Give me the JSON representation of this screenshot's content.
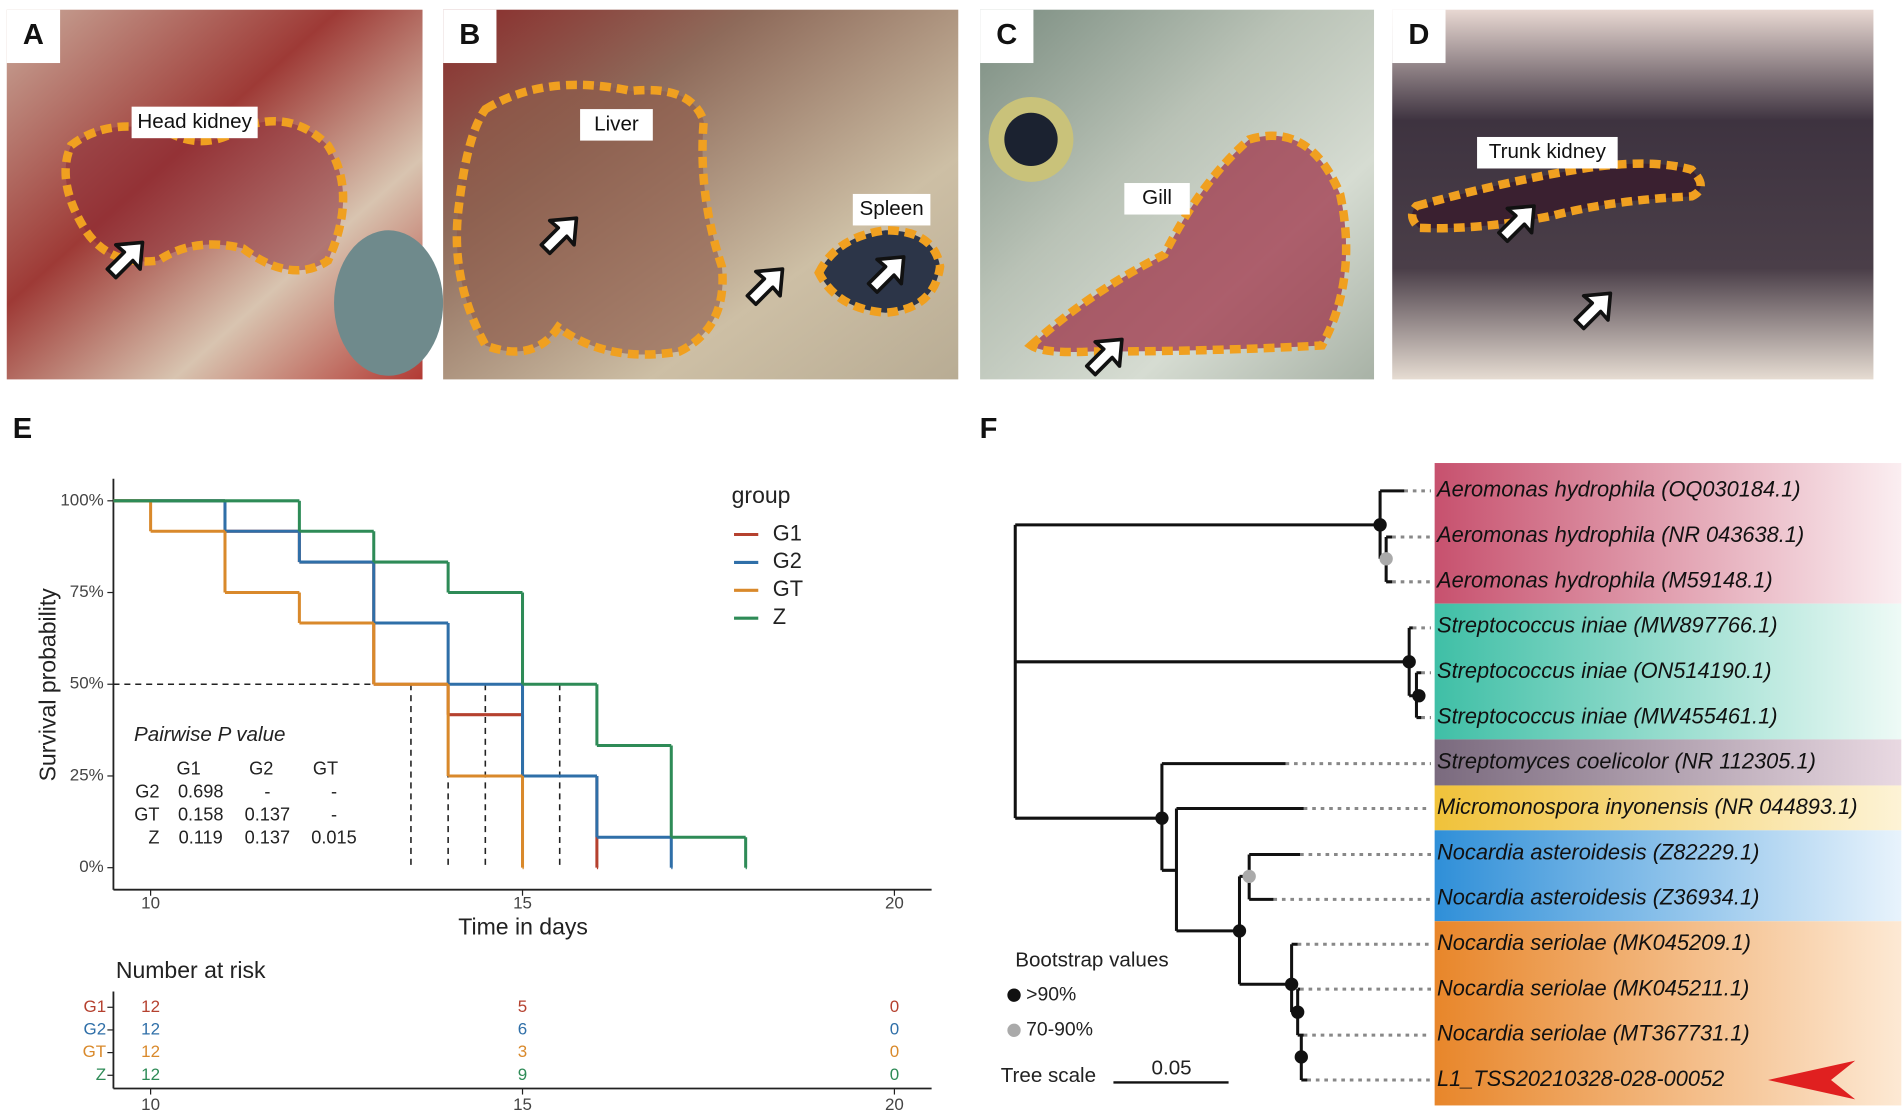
{
  "panel_labels": [
    "A",
    "B",
    "C",
    "D",
    "E",
    "F"
  ],
  "photo_labels": [
    "Head kidney",
    "Liver",
    "Spleen",
    "Gill",
    "Trunk kidney"
  ],
  "chart_data": {
    "type": "step",
    "xlabel": "Time in days",
    "ylabel": "Survival probability",
    "xlim": [
      9.5,
      20.5
    ],
    "xticks": [
      10,
      15,
      20
    ],
    "ylim": [
      -6,
      106
    ],
    "yticks": [
      {
        "value": 0,
        "label": "0%"
      },
      {
        "value": 25,
        "label": "25%"
      },
      {
        "value": 50,
        "label": "50%"
      },
      {
        "value": 75,
        "label": "75%"
      },
      {
        "value": 100,
        "label": "100%"
      }
    ],
    "legend_title": "group",
    "series": [
      {
        "name": "G1",
        "color": "#b5412f",
        "x": [
          9.5,
          11,
          12,
          13,
          14,
          15,
          16
        ],
        "values": [
          100,
          91.7,
          83.3,
          50,
          41.7,
          25,
          0
        ]
      },
      {
        "name": "G2",
        "color": "#2f6fa8",
        "x": [
          9.5,
          11,
          12,
          13,
          14,
          15,
          16,
          17
        ],
        "values": [
          100,
          91.7,
          83.3,
          66.7,
          50,
          25,
          8.3,
          0
        ]
      },
      {
        "name": "GT",
        "color": "#d9892b",
        "x": [
          9.5,
          10,
          11,
          12,
          13,
          14,
          15
        ],
        "values": [
          100,
          91.7,
          75,
          66.7,
          50,
          25,
          0
        ]
      },
      {
        "name": "Z",
        "color": "#2e8b57",
        "x": [
          9.5,
          12,
          13,
          14,
          15,
          16,
          17,
          18
        ],
        "values": [
          100,
          91.7,
          83.3,
          75,
          50,
          33.3,
          8.3,
          0
        ]
      }
    ],
    "median_level": 50,
    "median_times": [
      13.5,
      14,
      14.5,
      15.5
    ],
    "pairwise": {
      "title": "Pairwise P value",
      "columns": [
        "G1",
        "G2",
        "GT"
      ],
      "rows": [
        {
          "name": "G2",
          "cells": [
            "0.698",
            "-",
            "-"
          ]
        },
        {
          "name": "GT",
          "cells": [
            "0.158",
            "0.137",
            "-"
          ]
        },
        {
          "name": "Z",
          "cells": [
            "0.119",
            "0.137",
            "0.015"
          ]
        }
      ]
    },
    "risk_table": {
      "title": "Number at risk",
      "times": [
        10,
        15,
        20
      ],
      "rows": [
        {
          "name": "G1",
          "values": [
            12,
            5,
            0
          ]
        },
        {
          "name": "G2",
          "values": [
            12,
            6,
            0
          ]
        },
        {
          "name": "GT",
          "values": [
            12,
            3,
            0
          ]
        },
        {
          "name": "Z",
          "values": [
            12,
            9,
            0
          ]
        }
      ]
    }
  },
  "tree": {
    "leaves": [
      "Aeromonas hydrophila (OQ030184.1)",
      "Aeromonas hydrophila (NR 043638.1)",
      "Aeromonas hydrophila (M59148.1)",
      "Streptococcus iniae (MW897766.1)",
      "Streptococcus iniae (ON514190.1)",
      "Streptococcus iniae (MW455461.1)",
      "Streptomyces coelicolor (NR 112305.1)",
      "Micromonospora inyonensis (NR 044893.1)",
      "Nocardia asteroidesis (Z82229.1)",
      "Nocardia asteroidesis (Z36934.1)",
      "Nocardia seriolae (MK045209.1)",
      "Nocardia seriolae (MK045211.1)",
      "Nocardia seriolae (MT367731.1)",
      "L1_TSS20210328-028-00052"
    ],
    "legend_title": "Bootstrap values",
    "legend_items": [
      ">90%",
      "70-90%"
    ],
    "scale_label": "Tree scale",
    "scale_value": "0.05"
  }
}
